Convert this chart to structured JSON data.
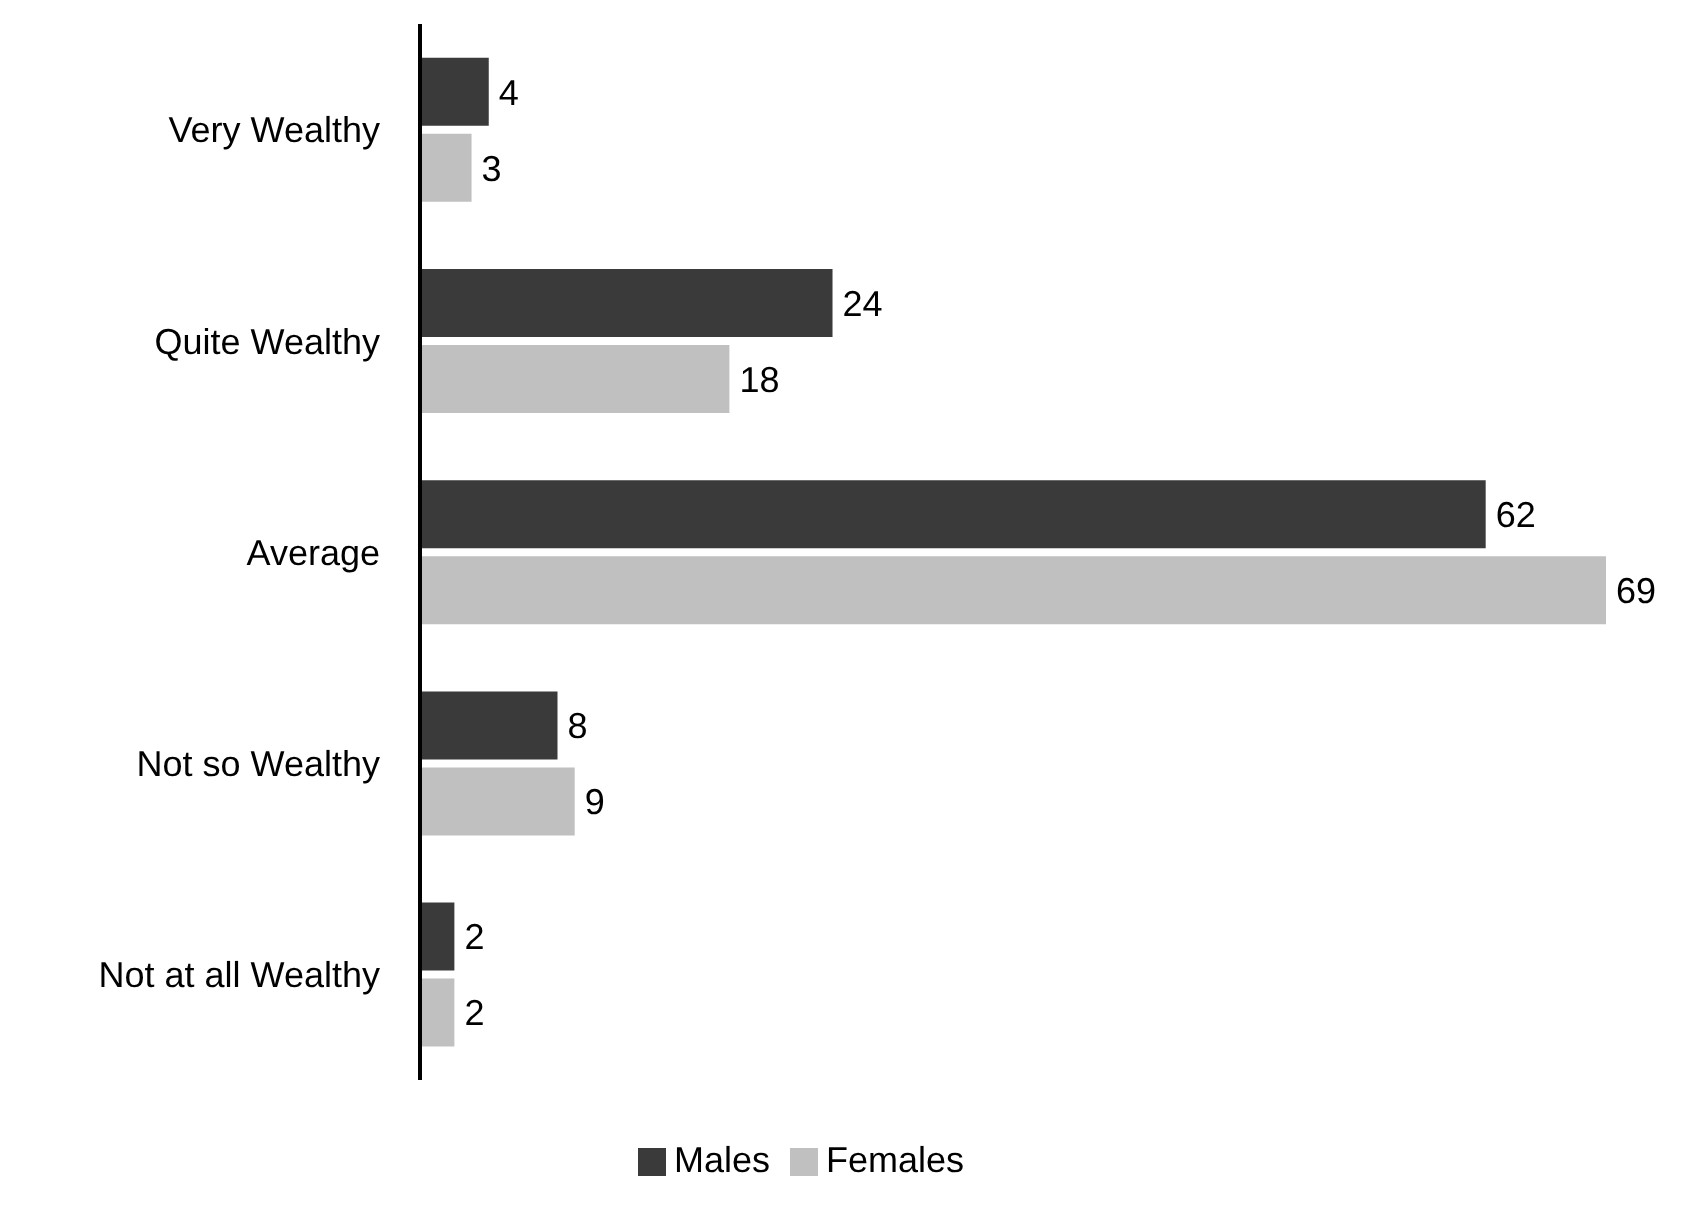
{
  "chart_data": {
    "type": "bar",
    "orientation": "horizontal",
    "categories": [
      "Very Wealthy",
      "Quite Wealthy",
      "Average",
      "Not so Wealthy",
      "Not at all Wealthy"
    ],
    "series": [
      {
        "name": "Males",
        "color": "#3a3a3a",
        "values": [
          4,
          24,
          62,
          8,
          2
        ]
      },
      {
        "name": "Females",
        "color": "#c0c0c0",
        "values": [
          3,
          18,
          69,
          9,
          2
        ]
      }
    ],
    "data_labels": true,
    "legend": "bottom",
    "grid": false
  }
}
